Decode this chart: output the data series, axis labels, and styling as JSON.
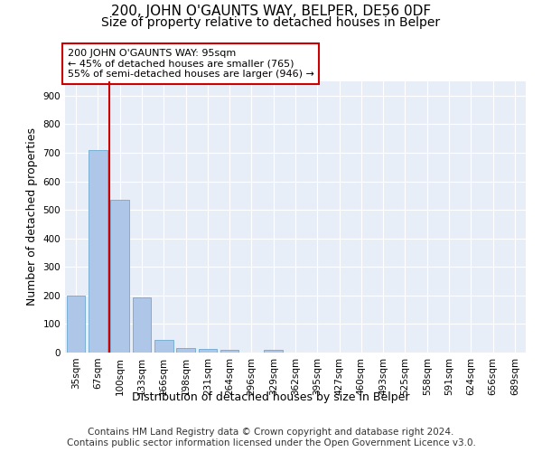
{
  "title": "200, JOHN O'GAUNTS WAY, BELPER, DE56 0DF",
  "subtitle": "Size of property relative to detached houses in Belper",
  "xlabel": "Distribution of detached houses by size in Belper",
  "ylabel": "Number of detached properties",
  "categories": [
    "35sqm",
    "67sqm",
    "100sqm",
    "133sqm",
    "166sqm",
    "198sqm",
    "231sqm",
    "264sqm",
    "296sqm",
    "329sqm",
    "362sqm",
    "395sqm",
    "427sqm",
    "460sqm",
    "493sqm",
    "525sqm",
    "558sqm",
    "591sqm",
    "624sqm",
    "656sqm",
    "689sqm"
  ],
  "values": [
    200,
    710,
    535,
    193,
    44,
    17,
    13,
    9,
    0,
    8,
    0,
    0,
    0,
    0,
    0,
    0,
    0,
    0,
    0,
    0,
    0
  ],
  "bar_color": "#aec6e8",
  "bar_edge_color": "#7aafd4",
  "vline_x": 1.5,
  "vline_color": "#cc0000",
  "annotation_text": "200 JOHN O'GAUNTS WAY: 95sqm\n← 45% of detached houses are smaller (765)\n55% of semi-detached houses are larger (946) →",
  "annotation_box_color": "#ffffff",
  "annotation_box_edge": "#cc0000",
  "ylim": [
    0,
    950
  ],
  "yticks": [
    0,
    100,
    200,
    300,
    400,
    500,
    600,
    700,
    800,
    900
  ],
  "background_color": "#e8eef7",
  "footer_text": "Contains HM Land Registry data © Crown copyright and database right 2024.\nContains public sector information licensed under the Open Government Licence v3.0.",
  "title_fontsize": 11,
  "subtitle_fontsize": 10,
  "xlabel_fontsize": 9,
  "ylabel_fontsize": 9,
  "tick_fontsize": 7.5,
  "footer_fontsize": 7.5
}
